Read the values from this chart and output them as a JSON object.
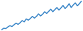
{
  "values": [
    0.5,
    1.2,
    1.0,
    1.8,
    2.4,
    2.0,
    2.8,
    3.6,
    3.0,
    3.8,
    4.8,
    4.2,
    5.6,
    5.0,
    5.8,
    6.8,
    6.0,
    6.8,
    8.0,
    7.0,
    7.8,
    9.0,
    8.2,
    9.2,
    10.2,
    9.0,
    10.0,
    11.0,
    9.8,
    10.8,
    12.0,
    10.5,
    11.5,
    12.8,
    11.0,
    12.2,
    13.2,
    11.8,
    12.8,
    14.0
  ],
  "line_color": "#3a86c8",
  "background_color": "#ffffff",
  "linewidth": 1.1
}
